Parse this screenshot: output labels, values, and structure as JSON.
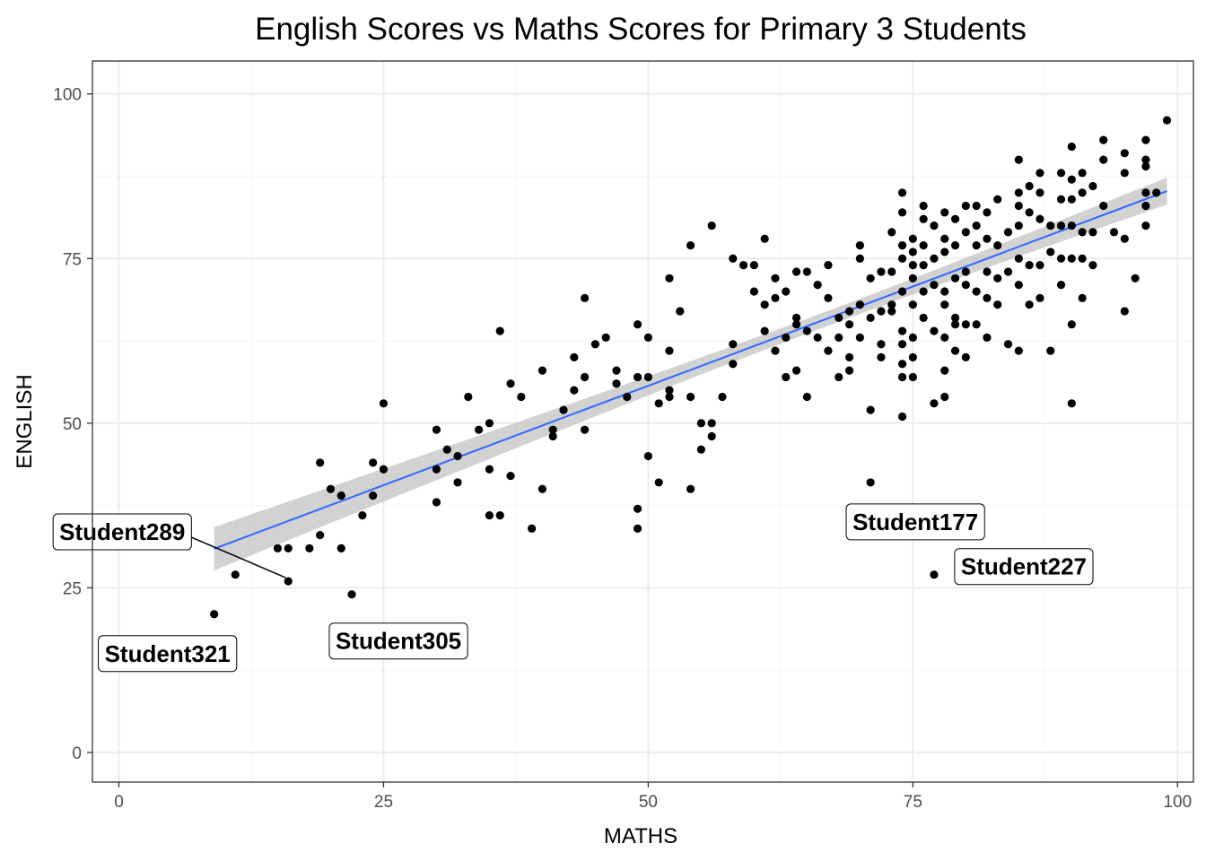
{
  "chart_data": {
    "type": "scatter",
    "title": "English Scores vs Maths Scores for Primary 3 Students",
    "xlabel": "MATHS",
    "ylabel": "ENGLISH",
    "xlim": [
      -2.5,
      101.5
    ],
    "ylim": [
      -4.5,
      105
    ],
    "xticks": [
      0,
      25,
      50,
      75,
      100
    ],
    "yticks": [
      0,
      25,
      50,
      75,
      100
    ],
    "grid": true,
    "legend": "none",
    "colors": {
      "points": "#000000",
      "fit_line": "#3366ff",
      "confidence_band": "#bfbfbf"
    },
    "points": [
      [
        9,
        21
      ],
      [
        11,
        27
      ],
      [
        15,
        31
      ],
      [
        16,
        26
      ],
      [
        16,
        31
      ],
      [
        18,
        31
      ],
      [
        19,
        33
      ],
      [
        19,
        44
      ],
      [
        20,
        40
      ],
      [
        21,
        39
      ],
      [
        21,
        31
      ],
      [
        22,
        24
      ],
      [
        23,
        36
      ],
      [
        24,
        39
      ],
      [
        24,
        44
      ],
      [
        25,
        43
      ],
      [
        25,
        53
      ],
      [
        30,
        38
      ],
      [
        30,
        43
      ],
      [
        30,
        49
      ],
      [
        31,
        46
      ],
      [
        32,
        41
      ],
      [
        32,
        45
      ],
      [
        33,
        54
      ],
      [
        34,
        49
      ],
      [
        35,
        43
      ],
      [
        35,
        50
      ],
      [
        35,
        36
      ],
      [
        36,
        36
      ],
      [
        36,
        64
      ],
      [
        37,
        42
      ],
      [
        37,
        56
      ],
      [
        38,
        54
      ],
      [
        39,
        34
      ],
      [
        40,
        40
      ],
      [
        40,
        58
      ],
      [
        41,
        48
      ],
      [
        41,
        49
      ],
      [
        42,
        52
      ],
      [
        43,
        55
      ],
      [
        43,
        60
      ],
      [
        44,
        49
      ],
      [
        44,
        69
      ],
      [
        44,
        57
      ],
      [
        45,
        62
      ],
      [
        46,
        63
      ],
      [
        47,
        56
      ],
      [
        47,
        58
      ],
      [
        48,
        54
      ],
      [
        49,
        65
      ],
      [
        49,
        57
      ],
      [
        49,
        37
      ],
      [
        49,
        34
      ],
      [
        50,
        45
      ],
      [
        50,
        57
      ],
      [
        50,
        63
      ],
      [
        51,
        53
      ],
      [
        51,
        41
      ],
      [
        52,
        61
      ],
      [
        52,
        55
      ],
      [
        52,
        54
      ],
      [
        52,
        72
      ],
      [
        53,
        67
      ],
      [
        54,
        40
      ],
      [
        54,
        54
      ],
      [
        54,
        77
      ],
      [
        55,
        50
      ],
      [
        55,
        46
      ],
      [
        56,
        48
      ],
      [
        56,
        50
      ],
      [
        56,
        80
      ],
      [
        57,
        54
      ],
      [
        58,
        75
      ],
      [
        58,
        59
      ],
      [
        58,
        62
      ],
      [
        59,
        74
      ],
      [
        60,
        74
      ],
      [
        60,
        70
      ],
      [
        61,
        78
      ],
      [
        61,
        68
      ],
      [
        61,
        64
      ],
      [
        62,
        69
      ],
      [
        62,
        61
      ],
      [
        62,
        72
      ],
      [
        63,
        70
      ],
      [
        63,
        57
      ],
      [
        63,
        63
      ],
      [
        64,
        58
      ],
      [
        64,
        65
      ],
      [
        64,
        73
      ],
      [
        64,
        66
      ],
      [
        65,
        54
      ],
      [
        65,
        73
      ],
      [
        65,
        64
      ],
      [
        66,
        71
      ],
      [
        66,
        63
      ],
      [
        67,
        74
      ],
      [
        67,
        69
      ],
      [
        67,
        61
      ],
      [
        68,
        57
      ],
      [
        68,
        66
      ],
      [
        68,
        63
      ],
      [
        69,
        67
      ],
      [
        69,
        60
      ],
      [
        69,
        65
      ],
      [
        69,
        58
      ],
      [
        70,
        77
      ],
      [
        70,
        68
      ],
      [
        70,
        63
      ],
      [
        70,
        75
      ],
      [
        71,
        72
      ],
      [
        71,
        66
      ],
      [
        71,
        52
      ],
      [
        71,
        41
      ],
      [
        72,
        62
      ],
      [
        72,
        73
      ],
      [
        72,
        60
      ],
      [
        72,
        67
      ],
      [
        73,
        79
      ],
      [
        73,
        68
      ],
      [
        73,
        73
      ],
      [
        73,
        67
      ],
      [
        74,
        82
      ],
      [
        74,
        85
      ],
      [
        74,
        77
      ],
      [
        74,
        75
      ],
      [
        74,
        70
      ],
      [
        74,
        64
      ],
      [
        74,
        62
      ],
      [
        74,
        59
      ],
      [
        74,
        57
      ],
      [
        74,
        51
      ],
      [
        75,
        78
      ],
      [
        75,
        76
      ],
      [
        75,
        74
      ],
      [
        75,
        72
      ],
      [
        75,
        68
      ],
      [
        75,
        63
      ],
      [
        75,
        57
      ],
      [
        75,
        60
      ],
      [
        76,
        83
      ],
      [
        76,
        81
      ],
      [
        76,
        77
      ],
      [
        76,
        74
      ],
      [
        76,
        70
      ],
      [
        76,
        66
      ],
      [
        77,
        80
      ],
      [
        77,
        75
      ],
      [
        77,
        71
      ],
      [
        77,
        64
      ],
      [
        77,
        53
      ],
      [
        77,
        27
      ],
      [
        78,
        82
      ],
      [
        78,
        78
      ],
      [
        78,
        76
      ],
      [
        78,
        70
      ],
      [
        78,
        68
      ],
      [
        78,
        63
      ],
      [
        78,
        58
      ],
      [
        78,
        54
      ],
      [
        79,
        81
      ],
      [
        79,
        77
      ],
      [
        79,
        72
      ],
      [
        79,
        65
      ],
      [
        79,
        61
      ],
      [
        79,
        66
      ],
      [
        80,
        83
      ],
      [
        80,
        79
      ],
      [
        80,
        73
      ],
      [
        80,
        71
      ],
      [
        80,
        65
      ],
      [
        80,
        60
      ],
      [
        81,
        83
      ],
      [
        81,
        80
      ],
      [
        81,
        77
      ],
      [
        81,
        70
      ],
      [
        81,
        65
      ],
      [
        82,
        82
      ],
      [
        82,
        78
      ],
      [
        82,
        73
      ],
      [
        82,
        69
      ],
      [
        82,
        63
      ],
      [
        83,
        84
      ],
      [
        83,
        77
      ],
      [
        83,
        72
      ],
      [
        83,
        68
      ],
      [
        84,
        79
      ],
      [
        84,
        73
      ],
      [
        84,
        62
      ],
      [
        85,
        90
      ],
      [
        85,
        85
      ],
      [
        85,
        83
      ],
      [
        85,
        80
      ],
      [
        85,
        75
      ],
      [
        85,
        71
      ],
      [
        85,
        61
      ],
      [
        86,
        86
      ],
      [
        86,
        82
      ],
      [
        86,
        74
      ],
      [
        86,
        68
      ],
      [
        87,
        88
      ],
      [
        87,
        85
      ],
      [
        87,
        81
      ],
      [
        87,
        74
      ],
      [
        87,
        69
      ],
      [
        88,
        80
      ],
      [
        88,
        76
      ],
      [
        88,
        61
      ],
      [
        89,
        88
      ],
      [
        89,
        84
      ],
      [
        89,
        80
      ],
      [
        89,
        75
      ],
      [
        89,
        71
      ],
      [
        90,
        92
      ],
      [
        90,
        87
      ],
      [
        90,
        84
      ],
      [
        90,
        80
      ],
      [
        90,
        75
      ],
      [
        90,
        65
      ],
      [
        90,
        53
      ],
      [
        91,
        88
      ],
      [
        91,
        85
      ],
      [
        91,
        79
      ],
      [
        91,
        75
      ],
      [
        91,
        69
      ],
      [
        92,
        86
      ],
      [
        92,
        79
      ],
      [
        92,
        74
      ],
      [
        93,
        93
      ],
      [
        93,
        90
      ],
      [
        93,
        83
      ],
      [
        94,
        79
      ],
      [
        95,
        91
      ],
      [
        95,
        88
      ],
      [
        95,
        78
      ],
      [
        95,
        67
      ],
      [
        96,
        72
      ],
      [
        97,
        93
      ],
      [
        97,
        90
      ],
      [
        97,
        89
      ],
      [
        97,
        85
      ],
      [
        97,
        83
      ],
      [
        97,
        80
      ],
      [
        98,
        85
      ],
      [
        99,
        96
      ]
    ],
    "fit_line": {
      "method": "linear",
      "x_range": [
        9,
        99
      ],
      "intercept": 25.5,
      "slope": 0.6035
    },
    "annotations": [
      {
        "label": "Student289",
        "x": 16,
        "y": 26
      },
      {
        "label": "Student321",
        "x": 9,
        "y": 21
      },
      {
        "label": "Student305",
        "x": 22,
        "y": 24
      },
      {
        "label": "Student177",
        "x": 71,
        "y": 41
      },
      {
        "label": "Student227",
        "x": 77,
        "y": 27
      }
    ]
  }
}
